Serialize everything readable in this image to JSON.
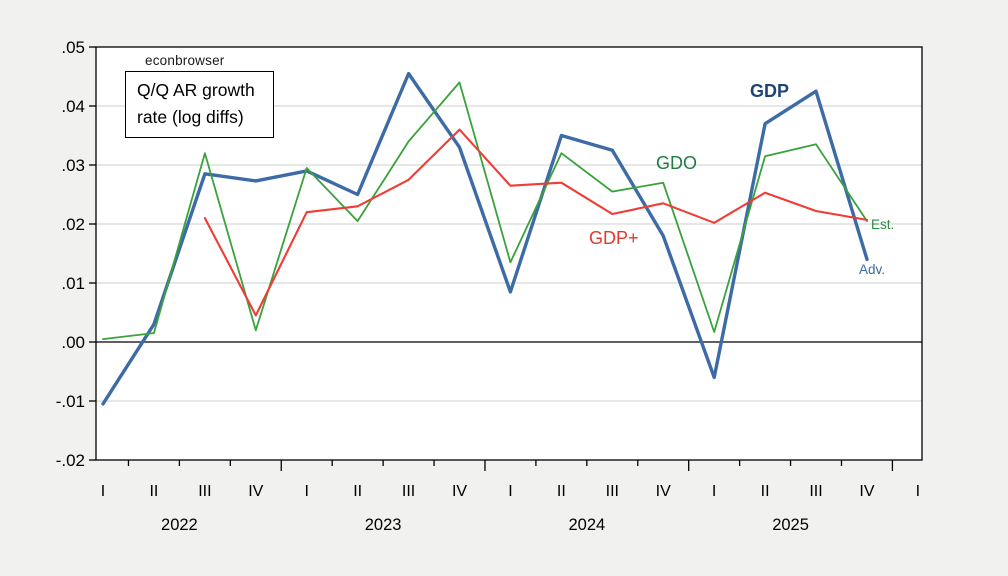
{
  "page": {
    "background": "#f1f1ef"
  },
  "chart_data": {
    "type": "line",
    "title": "Q/Q AR growth rate (log diffs)",
    "title_lines": [
      "Q/Q AR growth",
      "rate (log diffs)"
    ],
    "watermark": "econbrowser",
    "ylim": [
      -0.02,
      0.05
    ],
    "ytick_values": [
      0.05,
      0.04,
      0.03,
      0.02,
      0.01,
      0.0,
      -0.01,
      -0.02
    ],
    "ytick_labels": [
      ".05",
      ".04",
      ".03",
      ".02",
      ".01",
      ".00",
      "-.01",
      "-.02"
    ],
    "grid": "horizontal-light-gray",
    "zero_line": true,
    "legend_position": "inline-labels",
    "x_quarter_labels": [
      "I",
      "II",
      "III",
      "IV",
      "I",
      "II",
      "III",
      "IV",
      "I",
      "II",
      "III",
      "IV",
      "I",
      "II",
      "III",
      "IV",
      "I"
    ],
    "x_year_labels": [
      "2022",
      "2023",
      "2024",
      "2025"
    ],
    "categories": [
      "2022Q1",
      "2022Q2",
      "2022Q3",
      "2022Q4",
      "2023Q1",
      "2023Q2",
      "2023Q3",
      "2023Q4",
      "2024Q1",
      "2024Q2",
      "2024Q3",
      "2024Q4",
      "2025Q1",
      "2025Q2",
      "2025Q3",
      "2025Q4"
    ],
    "series": [
      {
        "name": "GDP",
        "color": "#3d6ba6",
        "width": 3.4,
        "values": [
          -0.0105,
          0.003,
          0.0285,
          0.0273,
          0.029,
          0.025,
          0.0455,
          0.033,
          0.0085,
          0.035,
          0.0325,
          0.018,
          -0.006,
          0.037,
          0.0425,
          0.014
        ]
      },
      {
        "name": "GDO",
        "color": "#3aa23c",
        "width": 1.8,
        "values": [
          0.0005,
          0.0015,
          0.032,
          0.002,
          0.0295,
          0.0205,
          0.034,
          0.044,
          0.0135,
          0.032,
          0.0255,
          0.027,
          0.0017,
          0.0315,
          0.0335,
          0.0205
        ]
      },
      {
        "name": "GDP+",
        "color": "#ef3c35",
        "width": 2.1,
        "values": [
          null,
          null,
          0.021,
          0.0045,
          0.022,
          0.023,
          0.0275,
          0.036,
          0.0265,
          0.027,
          0.0217,
          0.0235,
          0.0202,
          0.0253,
          0.0222,
          0.0207
        ]
      }
    ],
    "labels": {
      "gdp": "GDP",
      "gdo": "GDO",
      "gdp_plus": "GDP+",
      "est": "Est.",
      "adv": "Adv."
    }
  }
}
